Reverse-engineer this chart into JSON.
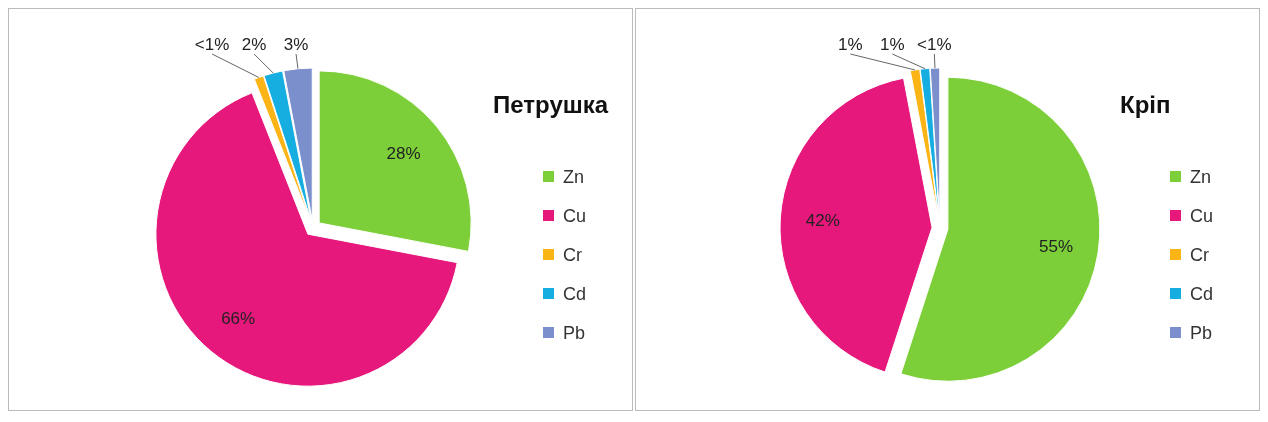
{
  "chart_data": [
    {
      "type": "pie",
      "title": "Петрушка",
      "categories": [
        "Zn",
        "Cu",
        "Cr",
        "Cd",
        "Pb"
      ],
      "values": [
        28,
        66,
        1,
        2,
        3
      ],
      "colors": [
        "#7dcf3a",
        "#e6187c",
        "#fbb415",
        "#16aee0",
        "#7b8fcc"
      ],
      "value_labels": [
        "28%",
        "66%",
        "<1%",
        "2%",
        "3%"
      ],
      "legend": "right"
    },
    {
      "type": "pie",
      "title": "Кріп",
      "categories": [
        "Zn",
        "Cu",
        "Cr",
        "Cd",
        "Pb"
      ],
      "values": [
        55,
        42,
        1,
        1,
        1
      ],
      "colors": [
        "#7dcf3a",
        "#e6187c",
        "#fbb415",
        "#16aee0",
        "#7b8fcc"
      ],
      "value_labels": [
        "55%",
        "42%",
        "1%",
        "1%",
        "<1%"
      ],
      "legend": "right"
    }
  ]
}
